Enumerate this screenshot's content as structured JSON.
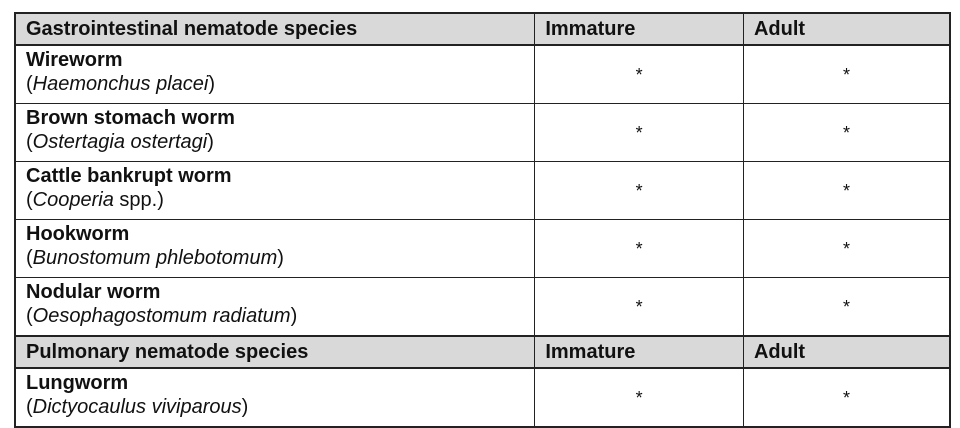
{
  "sections": [
    {
      "header": [
        "Gastrointestinal nematode species",
        "Immature",
        "Adult"
      ],
      "rows": [
        {
          "name": "Wireworm",
          "scientific": [
            {
              "text": "(",
              "italic": false
            },
            {
              "text": "Haemonchus placei",
              "italic": true
            },
            {
              "text": ")",
              "italic": false
            }
          ],
          "immature": "*",
          "adult": "*"
        },
        {
          "name": "Brown stomach worm",
          "scientific": [
            {
              "text": "(",
              "italic": false
            },
            {
              "text": "Ostertagia ostertagi",
              "italic": true
            },
            {
              "text": ")",
              "italic": false
            }
          ],
          "immature": "*",
          "adult": "*"
        },
        {
          "name": "Cattle bankrupt worm",
          "scientific": [
            {
              "text": "(",
              "italic": false
            },
            {
              "text": "Cooperia",
              "italic": true
            },
            {
              "text": " spp.)",
              "italic": false
            }
          ],
          "immature": "*",
          "adult": "*"
        },
        {
          "name": "Hookworm",
          "scientific": [
            {
              "text": "(",
              "italic": false
            },
            {
              "text": "Bunostomum phlebotomum",
              "italic": true
            },
            {
              "text": ")",
              "italic": false
            }
          ],
          "immature": "*",
          "adult": "*"
        },
        {
          "name": "Nodular worm",
          "scientific": [
            {
              "text": "(",
              "italic": false
            },
            {
              "text": "Oesophagostomum radiatum",
              "italic": true
            },
            {
              "text": ")",
              "italic": false
            }
          ],
          "immature": "*",
          "adult": "*"
        }
      ]
    },
    {
      "header": [
        "Pulmonary nematode species",
        "Immature",
        "Adult"
      ],
      "rows": [
        {
          "name": "Lungworm",
          "scientific": [
            {
              "text": "(",
              "italic": false
            },
            {
              "text": "Dictyocaulus viviparous",
              "italic": true
            },
            {
              "text": ")",
              "italic": false
            }
          ],
          "immature": "*",
          "adult": "*"
        }
      ]
    }
  ]
}
